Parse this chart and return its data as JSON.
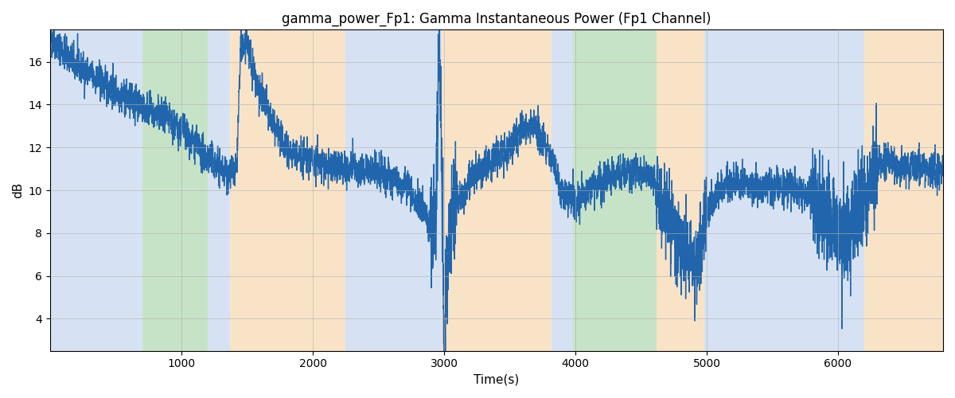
{
  "title": "gamma_power_Fp1: Gamma Instantaneous Power (Fp1 Channel)",
  "xlabel": "Time(s)",
  "ylabel": "dB",
  "xlim": [
    0,
    6800
  ],
  "ylim": [
    2.5,
    17.5
  ],
  "yticks": [
    4,
    6,
    8,
    10,
    12,
    14,
    16
  ],
  "xticks": [
    1000,
    2000,
    3000,
    4000,
    5000,
    6000
  ],
  "line_color": "#2166ac",
  "line_width": 1.0,
  "background_color": "#ffffff",
  "grid_color": "#b0b0b0",
  "bands": [
    {
      "xmin": 0,
      "xmax": 200,
      "color": "#aec6e8",
      "alpha": 0.5
    },
    {
      "xmin": 200,
      "xmax": 700,
      "color": "#aec6e8",
      "alpha": 0.5
    },
    {
      "xmin": 700,
      "xmax": 1200,
      "color": "#90c890",
      "alpha": 0.5
    },
    {
      "xmin": 1200,
      "xmax": 1370,
      "color": "#aec6e8",
      "alpha": 0.5
    },
    {
      "xmin": 1370,
      "xmax": 2250,
      "color": "#f5c890",
      "alpha": 0.5
    },
    {
      "xmin": 2250,
      "xmax": 2980,
      "color": "#aec6e8",
      "alpha": 0.5
    },
    {
      "xmin": 2980,
      "xmax": 3080,
      "color": "#f5c890",
      "alpha": 0.5
    },
    {
      "xmin": 3080,
      "xmax": 3820,
      "color": "#f5c890",
      "alpha": 0.5
    },
    {
      "xmin": 3820,
      "xmax": 3980,
      "color": "#aec6e8",
      "alpha": 0.5
    },
    {
      "xmin": 3980,
      "xmax": 4620,
      "color": "#90c890",
      "alpha": 0.5
    },
    {
      "xmin": 4620,
      "xmax": 4980,
      "color": "#f5c890",
      "alpha": 0.5
    },
    {
      "xmin": 4980,
      "xmax": 6080,
      "color": "#aec6e8",
      "alpha": 0.5
    },
    {
      "xmin": 6080,
      "xmax": 6200,
      "color": "#aec6e8",
      "alpha": 0.5
    },
    {
      "xmin": 6200,
      "xmax": 6800,
      "color": "#f5c890",
      "alpha": 0.5
    }
  ],
  "seed": 42,
  "envelope_times": [
    0,
    50,
    200,
    400,
    600,
    700,
    800,
    900,
    1000,
    1100,
    1150,
    1200,
    1300,
    1380,
    1420,
    1450,
    1500,
    1600,
    1700,
    1800,
    1900,
    2000,
    2100,
    2200,
    2300,
    2400,
    2500,
    2600,
    2700,
    2800,
    2900,
    2940,
    2960,
    2975,
    2985,
    3000,
    3010,
    3020,
    3040,
    3060,
    3080,
    3100,
    3150,
    3200,
    3300,
    3400,
    3500,
    3600,
    3650,
    3700,
    3750,
    3800,
    3850,
    3900,
    4000,
    4100,
    4200,
    4300,
    4400,
    4500,
    4600,
    4620,
    4700,
    4750,
    4800,
    4850,
    4900,
    4950,
    5000,
    5050,
    5100,
    5150,
    5200,
    5300,
    5400,
    5500,
    5600,
    5700,
    5800,
    5850,
    5900,
    5950,
    6000,
    6050,
    6100,
    6200,
    6300,
    6400,
    6500,
    6600,
    6700,
    6800
  ],
  "envelope_vals": [
    17.2,
    16.8,
    15.8,
    15.0,
    14.2,
    14.0,
    13.5,
    13.2,
    12.8,
    12.2,
    11.8,
    11.5,
    11.0,
    10.8,
    10.8,
    16.5,
    16.8,
    14.5,
    13.0,
    12.0,
    11.5,
    11.5,
    11.2,
    11.0,
    11.0,
    11.0,
    10.8,
    10.5,
    10.2,
    9.5,
    8.5,
    9.0,
    16.5,
    15.2,
    9.0,
    3.5,
    5.0,
    6.5,
    8.0,
    8.5,
    9.2,
    9.5,
    10.0,
    10.5,
    11.0,
    11.5,
    12.0,
    12.8,
    13.0,
    12.8,
    12.5,
    12.0,
    11.0,
    9.8,
    9.5,
    10.0,
    10.5,
    10.8,
    11.0,
    10.8,
    10.5,
    9.8,
    9.0,
    8.5,
    7.5,
    7.0,
    6.5,
    7.0,
    9.0,
    9.5,
    10.0,
    10.2,
    10.3,
    10.3,
    10.2,
    10.2,
    10.2,
    10.0,
    9.8,
    9.5,
    9.0,
    8.5,
    8.0,
    7.5,
    8.5,
    9.5,
    11.0,
    11.5,
    11.0,
    11.2,
    11.0,
    10.8
  ]
}
